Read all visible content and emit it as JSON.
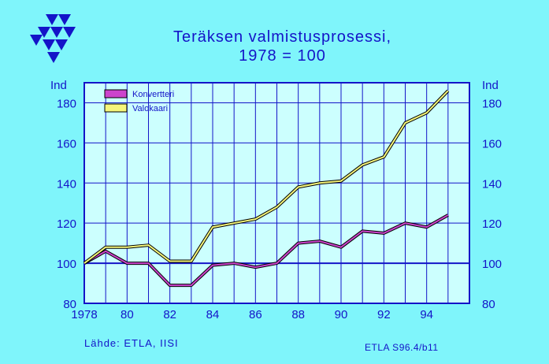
{
  "title_line1": "Teräksen  valmistusprosessi,",
  "title_line2": "1978  =  100",
  "source": "Lähde:  ETLA, IISI",
  "code": "ETLA S96.4/b11",
  "colors": {
    "background": "#7ff5fb",
    "plot_background": "#ccfffe",
    "axis": "#1414c8",
    "konvertteri": "#cc44cc",
    "valokaari": "#f5f57a"
  },
  "chart_data": {
    "type": "line",
    "ylabel": "Ind",
    "ylim": [
      80,
      190
    ],
    "yticks": [
      80,
      100,
      120,
      140,
      160,
      180
    ],
    "xlim": [
      1978,
      1996
    ],
    "xticks": [
      1978,
      1980,
      1982,
      1984,
      1986,
      1988,
      1990,
      1992,
      1994
    ],
    "xtick_labels": [
      "1978",
      "80",
      "82",
      "84",
      "86",
      "88",
      "90",
      "92",
      "94"
    ],
    "x": [
      1978,
      1979,
      1980,
      1981,
      1982,
      1983,
      1984,
      1985,
      1986,
      1987,
      1988,
      1989,
      1990,
      1991,
      1992,
      1993,
      1994,
      1995
    ],
    "series": [
      {
        "name": "Konvertteri",
        "color": "#cc44cc",
        "values": [
          100,
          106,
          100,
          100,
          89,
          89,
          99,
          100,
          98,
          100,
          110,
          111,
          108,
          116,
          115,
          120,
          118,
          124
        ]
      },
      {
        "name": "Valokaari",
        "color": "#f5f57a",
        "values": [
          100,
          108,
          108,
          109,
          101,
          101,
          118,
          120,
          122,
          128,
          138,
          140,
          141,
          149,
          153,
          170,
          175,
          186
        ]
      }
    ],
    "legend_position": "top-left",
    "grid": true,
    "reference_line": 100
  }
}
